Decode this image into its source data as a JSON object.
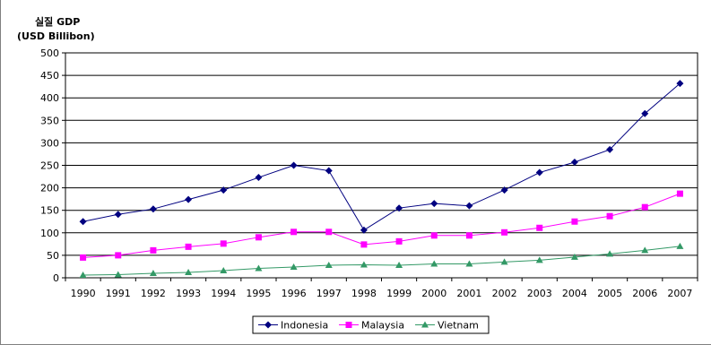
{
  "chart_data": {
    "type": "line",
    "title": "실질 GDP",
    "ylabel": "(USD Billibon)",
    "xlabel": "",
    "categories": [
      "1990",
      "1991",
      "1992",
      "1993",
      "1994",
      "1995",
      "1996",
      "1997",
      "1998",
      "1999",
      "2000",
      "2001",
      "2002",
      "2003",
      "2004",
      "2005",
      "2006",
      "2007"
    ],
    "yticks": [
      "0",
      "50",
      "100",
      "150",
      "200",
      "250",
      "300",
      "350",
      "400",
      "450",
      "500"
    ],
    "ylim": [
      0,
      500
    ],
    "grid": true,
    "legend_position": "bottom",
    "series": [
      {
        "name": "Indonesia",
        "color": "#000080",
        "marker": "diamond",
        "values": [
          125,
          141,
          153,
          174,
          195,
          223,
          250,
          238,
          106,
          155,
          165,
          160,
          195,
          234,
          257,
          285,
          365,
          432
        ]
      },
      {
        "name": "Malaysia",
        "color": "#FF00FF",
        "marker": "square",
        "values": [
          45,
          50,
          61,
          69,
          76,
          90,
          102,
          102,
          74,
          81,
          94,
          94,
          101,
          111,
          125,
          137,
          157,
          187
        ]
      },
      {
        "name": "Vietnam",
        "color": "#339966",
        "marker": "triangle",
        "values": [
          6,
          7,
          10,
          12,
          16,
          21,
          24,
          28,
          29,
          28,
          31,
          31,
          35,
          39,
          46,
          53,
          61,
          70
        ]
      }
    ]
  }
}
